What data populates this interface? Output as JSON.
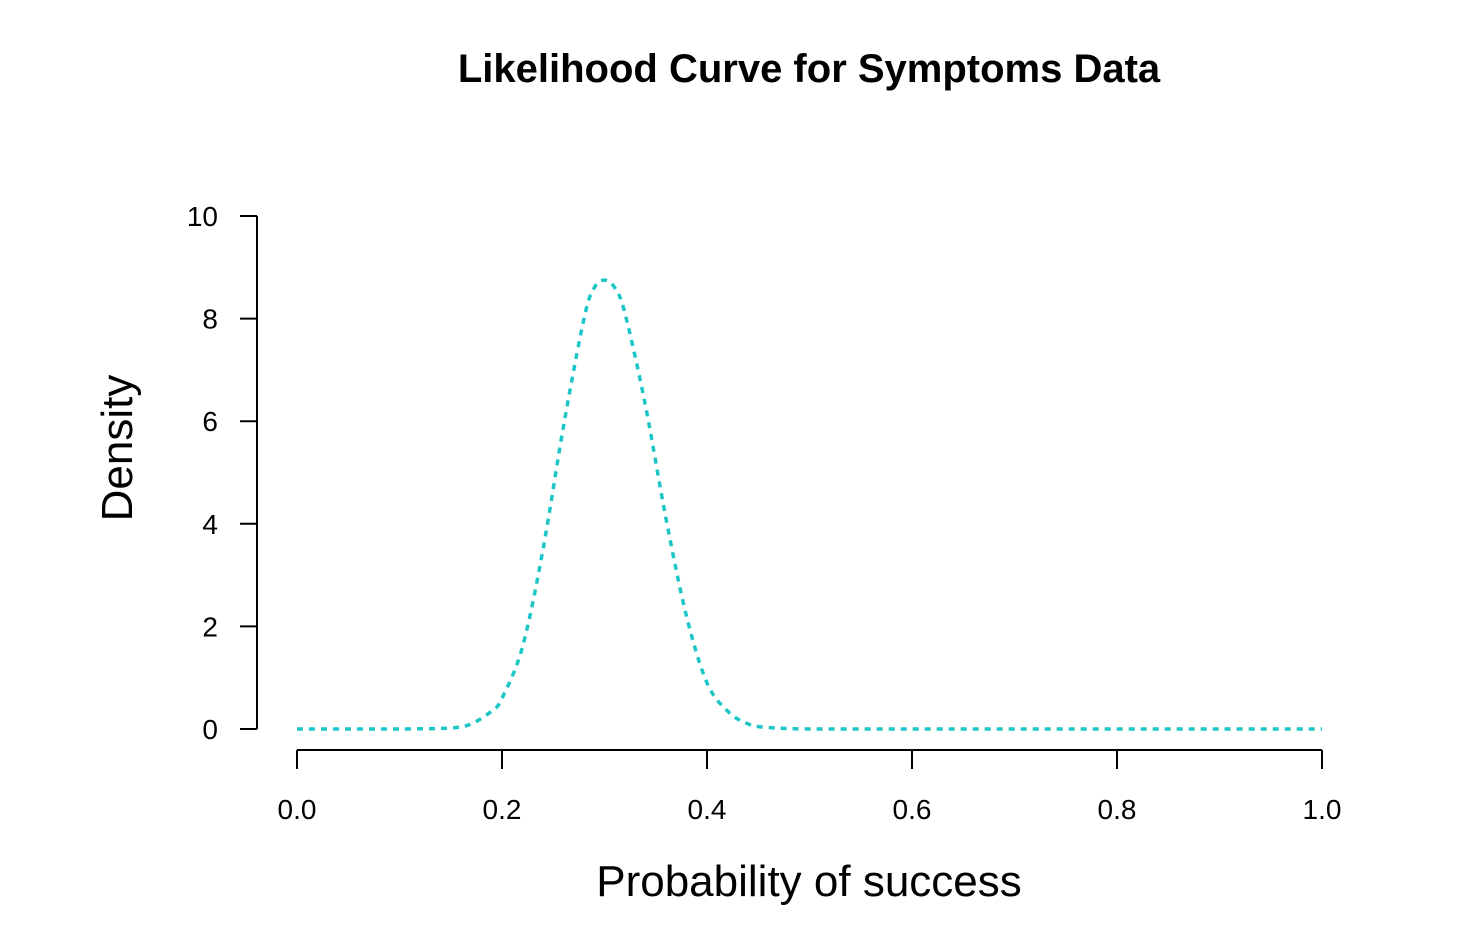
{
  "chart_data": {
    "type": "line",
    "title": "Likelihood Curve for Symptoms Data",
    "xlabel": "Probability of success",
    "ylabel": "Density",
    "xlim": [
      0,
      1
    ],
    "ylim": [
      0,
      10
    ],
    "x_ticks": [
      "0.0",
      "0.2",
      "0.4",
      "0.6",
      "0.8",
      "1.0"
    ],
    "y_ticks": [
      "0",
      "2",
      "4",
      "6",
      "8",
      "10"
    ],
    "grid": false,
    "series": [
      {
        "name": "likelihood",
        "color": "#1CC6C6",
        "line_style": "dotted",
        "x": [
          0.0,
          0.05,
          0.1,
          0.15,
          0.17,
          0.19,
          0.2,
          0.22,
          0.24,
          0.26,
          0.28,
          0.29,
          0.3,
          0.31,
          0.32,
          0.34,
          0.36,
          0.38,
          0.4,
          0.42,
          0.44,
          0.46,
          0.5,
          0.6,
          0.7,
          0.8,
          0.9,
          1.0
        ],
        "values": [
          0.0,
          0.0,
          0.0,
          0.02,
          0.1,
          0.35,
          0.6,
          1.6,
          3.5,
          5.9,
          8.0,
          8.6,
          8.75,
          8.6,
          8.1,
          6.3,
          4.1,
          2.2,
          0.9,
          0.35,
          0.1,
          0.03,
          0.0,
          0.0,
          0.0,
          0.0,
          0.0,
          0.0
        ]
      }
    ]
  }
}
